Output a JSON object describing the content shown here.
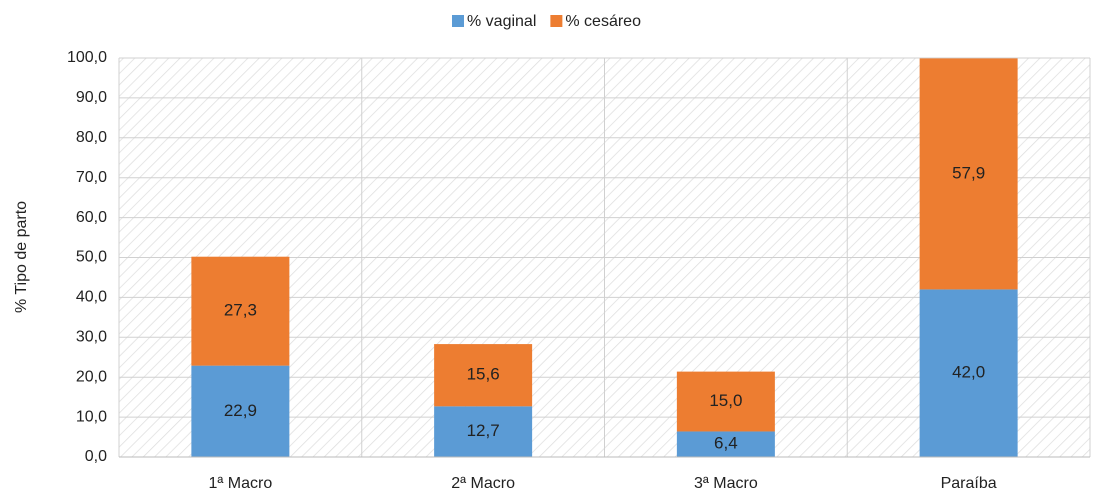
{
  "chart_data": {
    "type": "stacked_bar",
    "y_label": "% Tipo de parto",
    "categories": [
      "1ª Macro",
      "2ª Macro",
      "3ª Macro",
      "Paraíba"
    ],
    "series": [
      {
        "name": "% vaginal",
        "color": "#5b9bd5",
        "values": [
          22.9,
          12.7,
          6.4,
          42.0
        ],
        "value_labels": [
          "22,9",
          "12,7",
          "6,4",
          "42,0"
        ]
      },
      {
        "name": "% cesáreo",
        "color": "#ed7d31",
        "values": [
          27.3,
          15.6,
          15.0,
          57.9
        ],
        "value_labels": [
          "27,3",
          "15,6",
          "15,0",
          "57,9"
        ]
      }
    ],
    "ylim": [
      0,
      100
    ],
    "yticks": [
      {
        "value": 0,
        "label": "0,0"
      },
      {
        "value": 10,
        "label": "10,0"
      },
      {
        "value": 20,
        "label": "20,0"
      },
      {
        "value": 30,
        "label": "30,0"
      },
      {
        "value": 40,
        "label": "40,0"
      },
      {
        "value": 50,
        "label": "50,0"
      },
      {
        "value": 60,
        "label": "60,0"
      },
      {
        "value": 70,
        "label": "70,0"
      },
      {
        "value": 80,
        "label": "80,0"
      },
      {
        "value": 90,
        "label": "90,0"
      },
      {
        "value": 100,
        "label": "100,0"
      }
    ],
    "grid": true,
    "legend": "top"
  }
}
